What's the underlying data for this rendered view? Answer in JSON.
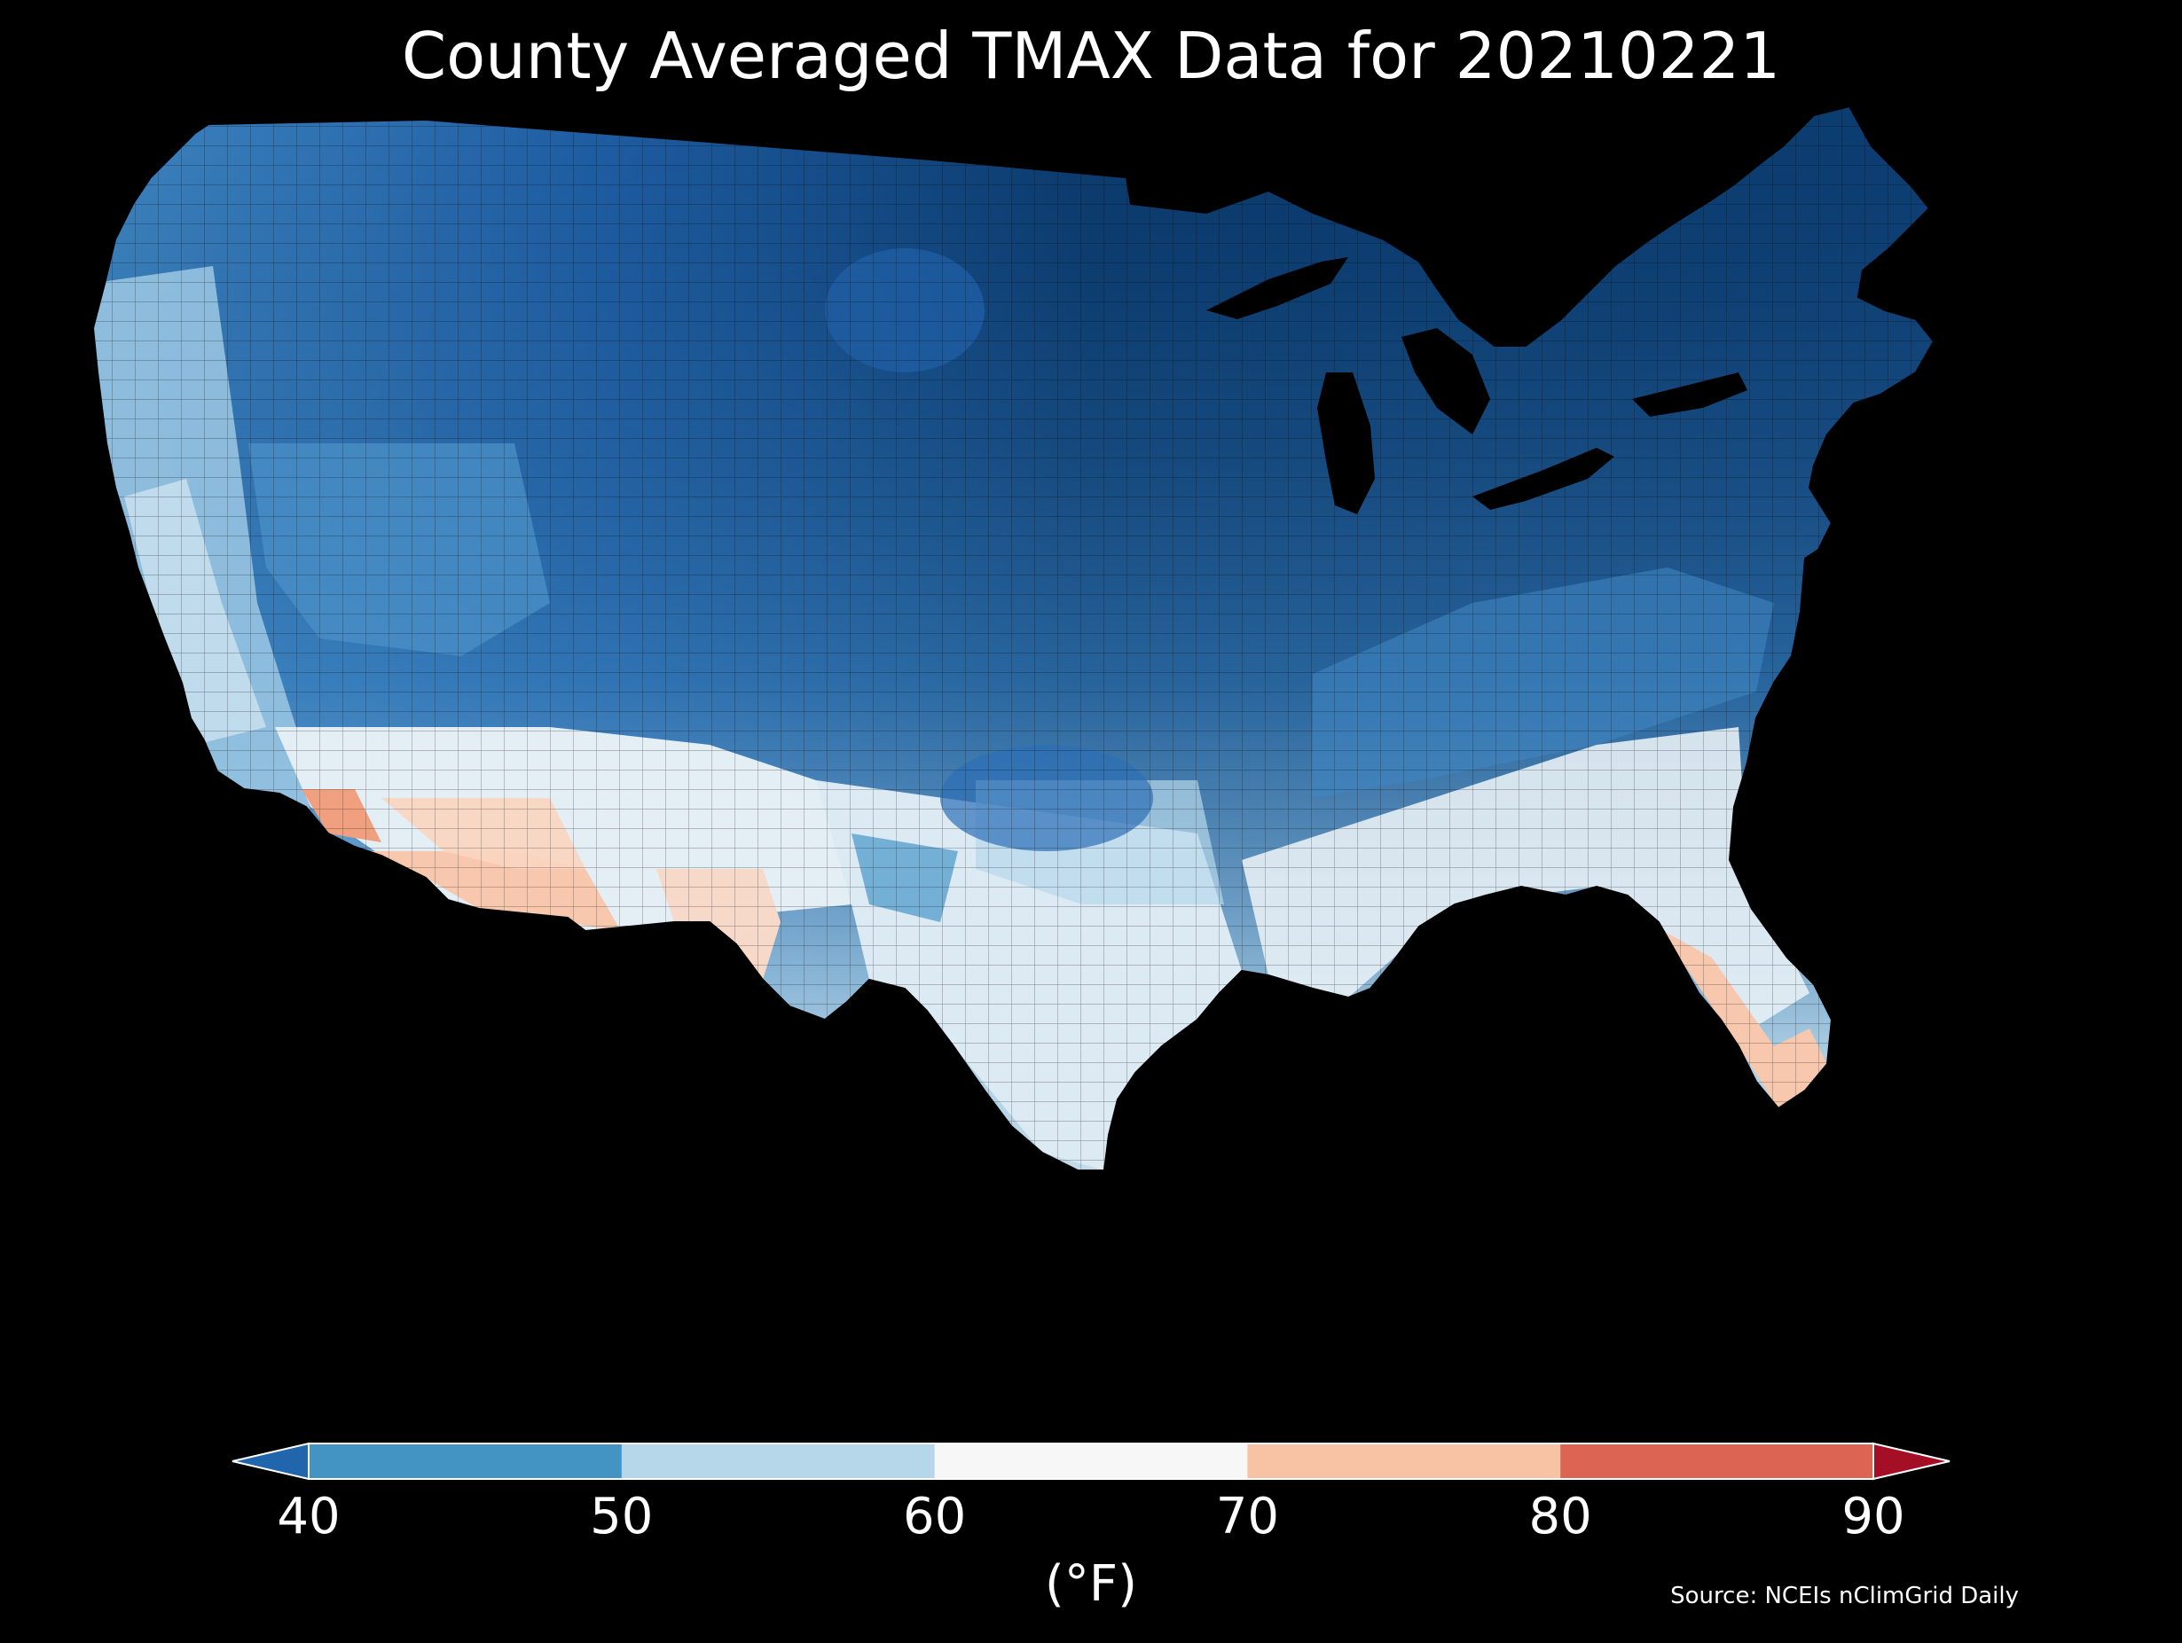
{
  "title": "County Averaged TMAX Data for 20210221",
  "colorbar": {
    "unit_label": "(°F)",
    "ticks": [
      "40",
      "50",
      "60",
      "70",
      "80",
      "90"
    ],
    "tick_values": [
      40,
      50,
      60,
      70,
      80,
      90
    ],
    "extend": "both",
    "colors": {
      "under": "#2166ac",
      "bins": [
        "#4393c3",
        "#b6d7e9",
        "#f7f7f7",
        "#f8c2a4",
        "#dc6453"
      ],
      "over": "#a50f25"
    }
  },
  "source": "Source: NCEIs nClimGrid Daily",
  "map_regions": [
    {
      "name": "northern-plains-midwest",
      "range": "below 40",
      "color": "#0b3a6c"
    },
    {
      "name": "northeast",
      "range": "below 40",
      "color": "#0f4178"
    },
    {
      "name": "rocky-mountains",
      "range": "below 40",
      "color": "#1f5ea4"
    },
    {
      "name": "pacific-northwest-interior",
      "range": "below 40",
      "color": "#2c6fb6"
    },
    {
      "name": "great-basin",
      "range": "40-50",
      "color": "#4a8fc6"
    },
    {
      "name": "central-plains",
      "range": "40-50",
      "color": "#5aa0ce"
    },
    {
      "name": "pacific-coast",
      "range": "50-60",
      "color": "#9cc8e4"
    },
    {
      "name": "southern-plains",
      "range": "50-60",
      "color": "#b7d8eb"
    },
    {
      "name": "southeast",
      "range": "60-70",
      "color": "#dceaf3"
    },
    {
      "name": "gulf-coast-texas",
      "range": "60-70",
      "color": "#eef2f6"
    },
    {
      "name": "desert-southwest",
      "range": "70-80",
      "color": "#f7c8ad"
    },
    {
      "name": "south-florida",
      "range": "70-80",
      "color": "#f6b795"
    },
    {
      "name": "imperial-valley",
      "range": "70-80",
      "color": "#f0a07e"
    }
  ]
}
